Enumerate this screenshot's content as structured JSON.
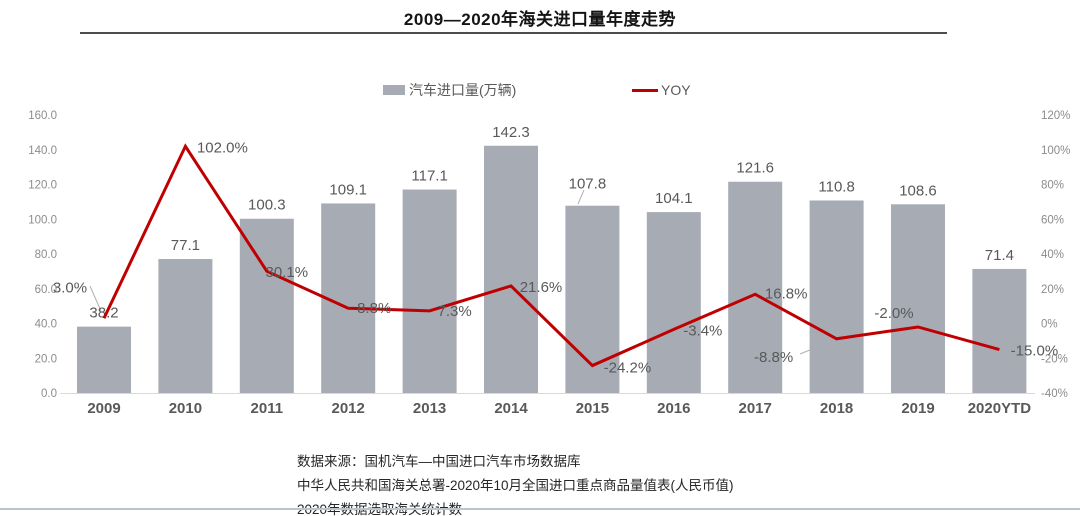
{
  "title": "2009—2020年海关进口量年度走势",
  "legend": {
    "bar_label": "汽车进口量(万辆)",
    "line_label": "YOY"
  },
  "colors": {
    "bar": "#a6abb4",
    "line": "#c00000",
    "data_label": "#595959",
    "tick_label": "#8c8c8c",
    "x_label": "#595959",
    "axis_line": "#d9d9d9",
    "leader_line": "#b0b0b0"
  },
  "chart_data": {
    "type": "bar+line combo",
    "categories": [
      "2009",
      "2010",
      "2011",
      "2012",
      "2013",
      "2014",
      "2015",
      "2016",
      "2017",
      "2018",
      "2019",
      "2020YTD"
    ],
    "series": [
      {
        "name": "汽车进口量(万辆)",
        "type": "bar",
        "axis": "left",
        "values": [
          38.2,
          77.1,
          100.3,
          109.1,
          117.1,
          142.3,
          107.8,
          104.1,
          121.6,
          110.8,
          108.6,
          71.4
        ],
        "labels": [
          "38.2",
          "77.1",
          "100.3",
          "109.1",
          "117.1",
          "142.3",
          "107.8",
          "104.1",
          "121.6",
          "110.8",
          "108.6",
          "71.4"
        ]
      },
      {
        "name": "YOY",
        "type": "line",
        "axis": "right",
        "values": [
          3.0,
          102.0,
          30.1,
          8.8,
          7.3,
          21.6,
          -24.2,
          -3.4,
          16.8,
          -8.8,
          -2.0,
          -15.0
        ],
        "labels": [
          "3.0%",
          "102.0%",
          "30.1%",
          "8.8%",
          "7.3%",
          "21.6%",
          "-24.2%",
          "-3.4%",
          "16.8%",
          "-8.8%",
          "-2.0%",
          "-15.0%"
        ]
      }
    ],
    "left_axis": {
      "min": 0,
      "max": 160,
      "ticks": [
        {
          "v": 0,
          "label": "0.0"
        },
        {
          "v": 20,
          "label": "20.0"
        },
        {
          "v": 40,
          "label": "40.0"
        },
        {
          "v": 60,
          "label": "60.0"
        },
        {
          "v": 80,
          "label": "80.0"
        },
        {
          "v": 100,
          "label": "100.0"
        },
        {
          "v": 120,
          "label": "120.0"
        },
        {
          "v": 140,
          "label": "140.0"
        },
        {
          "v": 160,
          "label": "160.0"
        }
      ]
    },
    "right_axis": {
      "min": -40,
      "max": 120,
      "ticks": [
        {
          "v": -40,
          "label": "-40%"
        },
        {
          "v": -20,
          "label": "-20%"
        },
        {
          "v": 0,
          "label": "0%"
        },
        {
          "v": 20,
          "label": "20%"
        },
        {
          "v": 40,
          "label": "40%"
        },
        {
          "v": 60,
          "label": "60%"
        },
        {
          "v": 80,
          "label": "80%"
        },
        {
          "v": 100,
          "label": "100%"
        },
        {
          "v": 120,
          "label": "120%"
        }
      ]
    },
    "grid": "off",
    "legend_position": "top-center"
  },
  "footer": {
    "lines": [
      "数据来源：国机汽车—中国进口汽车市场数据库",
      "中华人民共和国海关总署-2020年10月全国进口重点商品量值表(人民币值)",
      "2020年数据选取海关统计数"
    ]
  }
}
